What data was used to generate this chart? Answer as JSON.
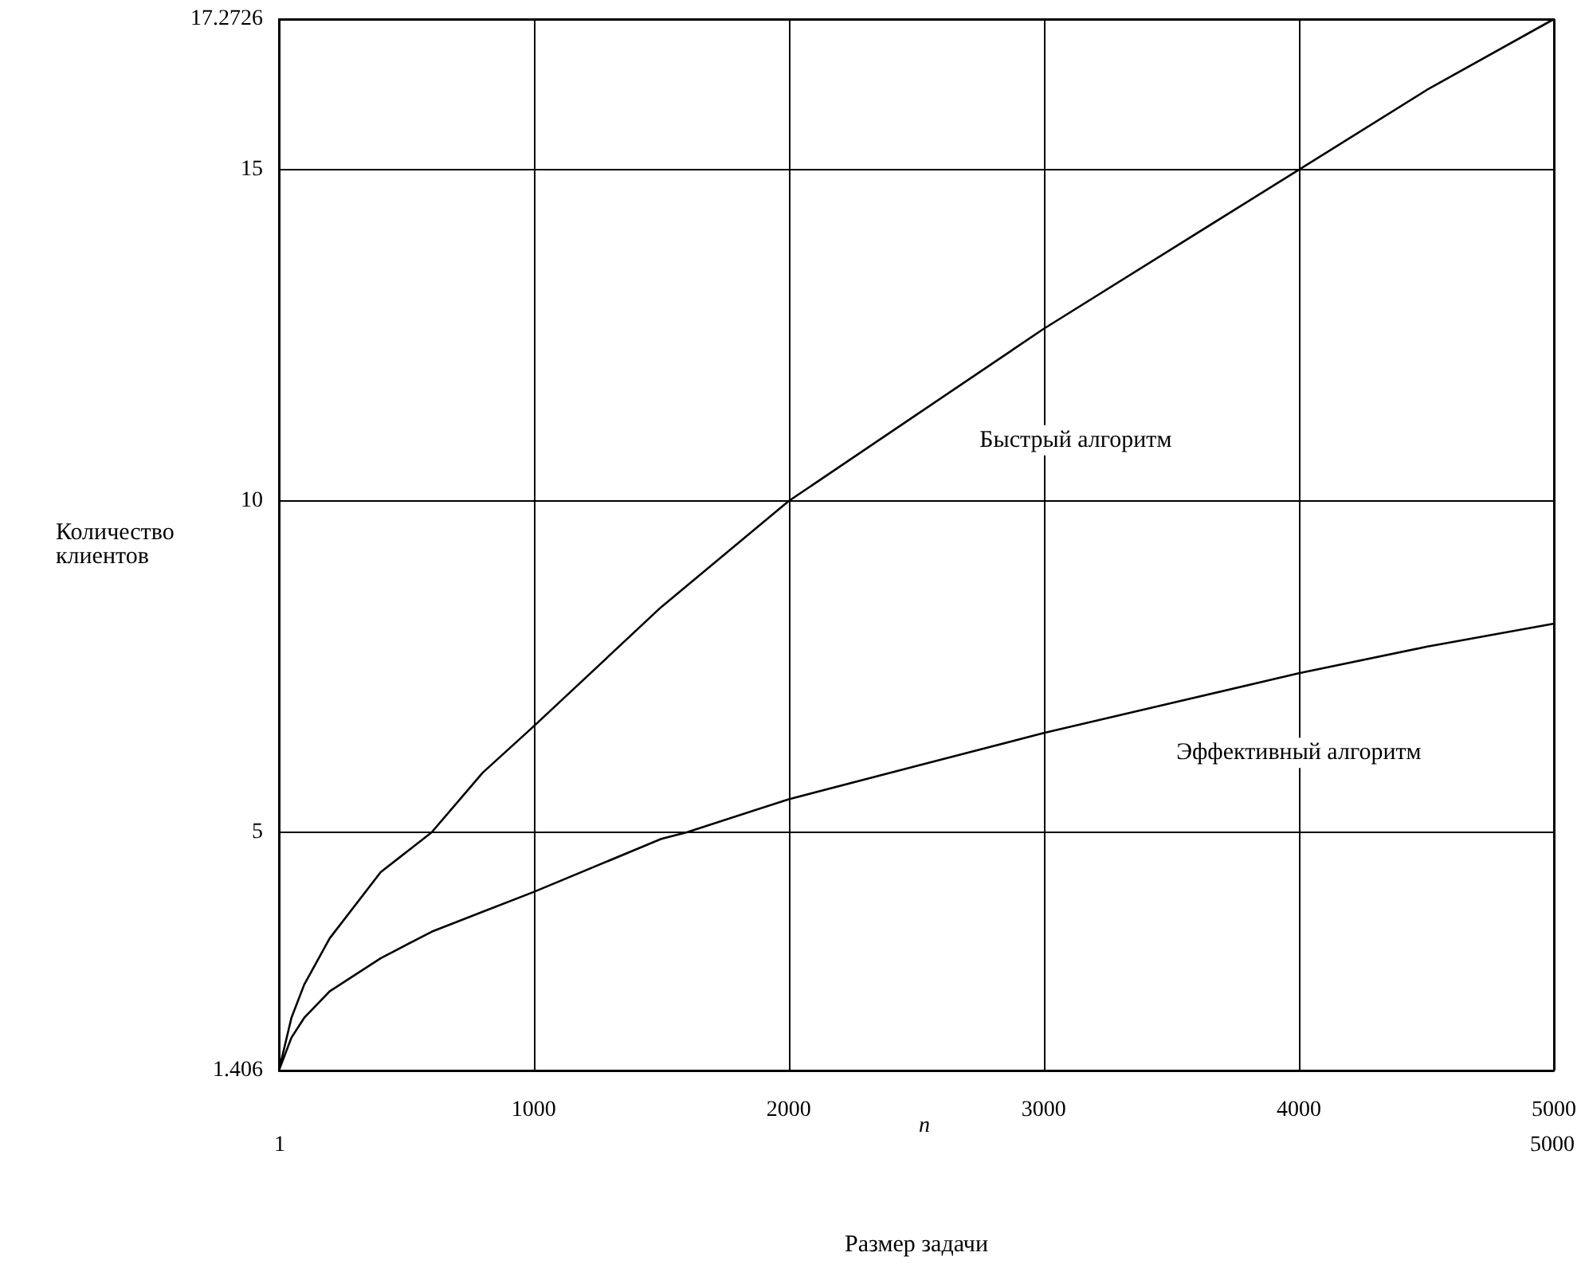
{
  "chart_data": {
    "type": "line",
    "ylabel": "Количество\nклиентов",
    "xlabel": "Размер задачи",
    "annotations": [
      "1",
      "n",
      "5000"
    ],
    "series": [
      {
        "name": "Быстрый алгоритм",
        "color": "#000000",
        "x": [
          1,
          50,
          100,
          200,
          400,
          600,
          800,
          1000,
          1500,
          2000,
          2500,
          3000,
          3500,
          4000,
          4500,
          5000
        ],
        "values": [
          1.406,
          2.2,
          2.7,
          3.4,
          4.4,
          5.0,
          5.9,
          6.6,
          8.4,
          10.0,
          11.3,
          12.6,
          13.8,
          15.0,
          16.2,
          17.2726
        ]
      },
      {
        "name": "Эффективный алгоритм",
        "color": "#000000",
        "x": [
          1,
          50,
          100,
          200,
          400,
          600,
          800,
          1000,
          1500,
          1600,
          2000,
          2500,
          3000,
          3500,
          4000,
          4500,
          5000
        ],
        "values": [
          1.406,
          1.9,
          2.2,
          2.6,
          3.1,
          3.5,
          3.8,
          4.1,
          4.9,
          5.0,
          5.5,
          6.0,
          6.5,
          6.95,
          7.4,
          7.8,
          8.15
        ]
      }
    ],
    "xlim": [
      1,
      5000
    ],
    "xticks": [
      1000,
      2000,
      3000,
      4000,
      5000
    ],
    "ylim": [
      1.406,
      17.2726
    ],
    "yticks": [
      {
        "value": 1.406,
        "label": "1.406"
      },
      5,
      10,
      15,
      {
        "value": 17.2726,
        "label": "17.2726"
      }
    ],
    "grid": true,
    "marker": "none",
    "line_style": "solid"
  }
}
